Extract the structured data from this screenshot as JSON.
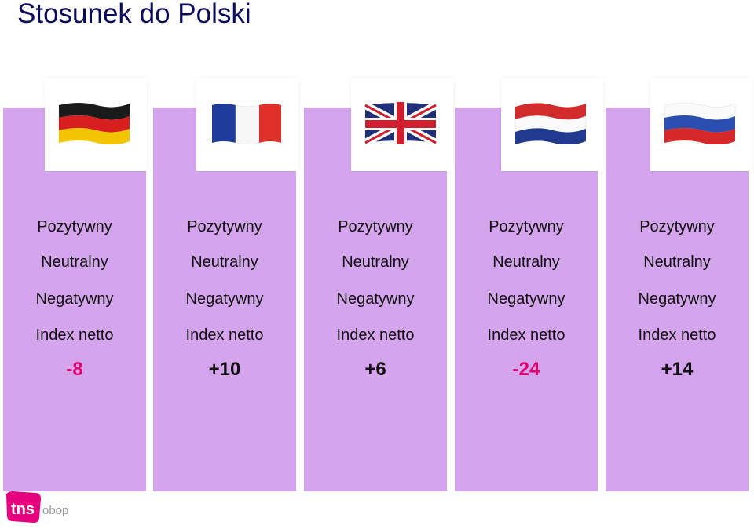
{
  "title": "Stosunek do Polski",
  "labels": {
    "positive": "Pozytywny",
    "neutral": "Neutralny",
    "negative": "Negatywny",
    "index": "Index netto"
  },
  "colors": {
    "column": "#d4a4ec",
    "negative_value": "#e0006e",
    "positive_value": "#111111",
    "title": "#0a0a5a",
    "logo": "#e6007e"
  },
  "countries": [
    {
      "flag_icon": "germany-flag-icon",
      "index_value": "-8"
    },
    {
      "flag_icon": "france-flag-icon",
      "index_value": "+10"
    },
    {
      "flag_icon": "uk-flag-icon",
      "index_value": "+6"
    },
    {
      "flag_icon": "netherlands-flag-icon",
      "index_value": "-24"
    },
    {
      "flag_icon": "russia-flag-icon",
      "index_value": "+14"
    }
  ],
  "logo": {
    "brand": "tns",
    "sub": "obop"
  }
}
